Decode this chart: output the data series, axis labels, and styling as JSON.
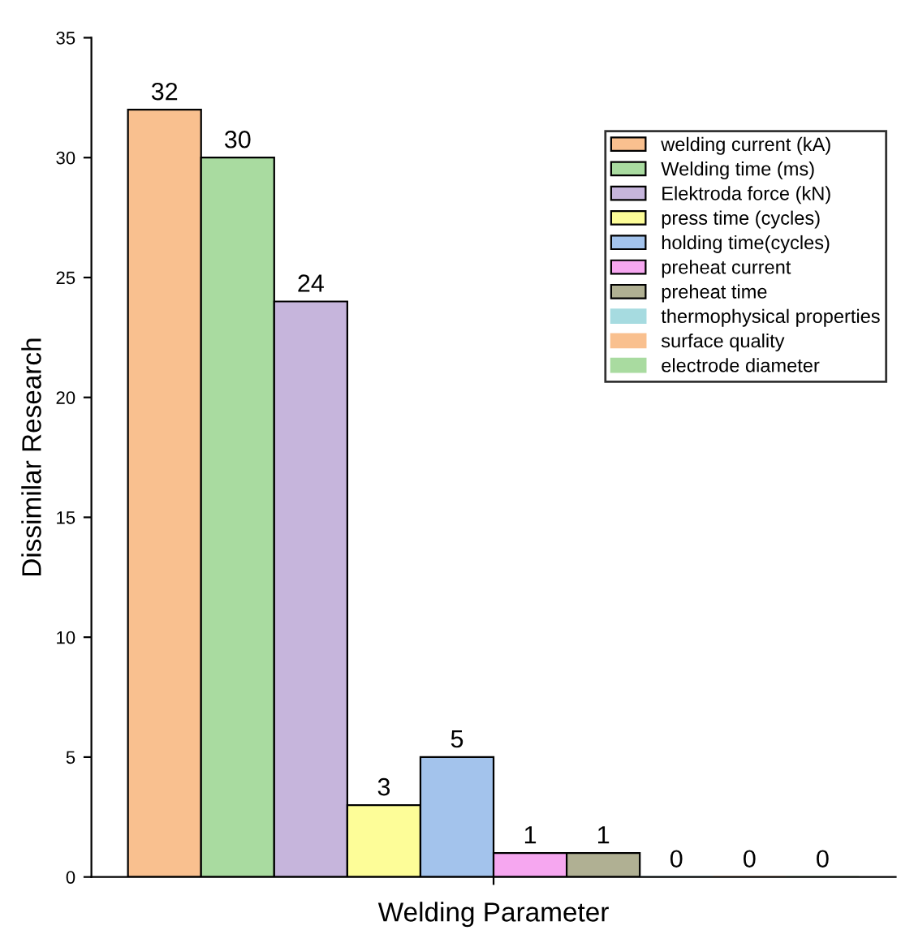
{
  "chart_data": {
    "type": "bar",
    "xlabel": "Welding Parameter",
    "ylabel": "Dissimilar Research",
    "categories": [
      null
    ],
    "series": [
      {
        "name": "welding current (kA)",
        "color": "#f9c08f",
        "values": [
          32
        ]
      },
      {
        "name": "Welding time (ms)",
        "color": "#a9dba0",
        "values": [
          30
        ]
      },
      {
        "name": "Elektroda force (kN)",
        "color": "#c6b5dc",
        "values": [
          24
        ]
      },
      {
        "name": "press time (cycles)",
        "color": "#fdfd98",
        "values": [
          3
        ]
      },
      {
        "name": "holding time(cycles)",
        "color": "#a3c3ec",
        "values": [
          5
        ]
      },
      {
        "name": "preheat current",
        "color": "#f6a7f0",
        "values": [
          1
        ]
      },
      {
        "name": "preheat time",
        "color": "#b0b093",
        "values": [
          1
        ]
      },
      {
        "name": "thermophysical properties",
        "color": "#a6dbe0",
        "values": [
          0
        ]
      },
      {
        "name": "surface quality",
        "color": "#f9c08f",
        "values": [
          0
        ]
      },
      {
        "name": "electrode diameter",
        "color": "#a9dba0",
        "values": [
          0
        ]
      }
    ],
    "ylim": [
      0,
      35
    ],
    "yticks": [
      0,
      5,
      10,
      15,
      20,
      25,
      30,
      35
    ],
    "data_labels": true,
    "legend": "top right",
    "grid": false
  }
}
